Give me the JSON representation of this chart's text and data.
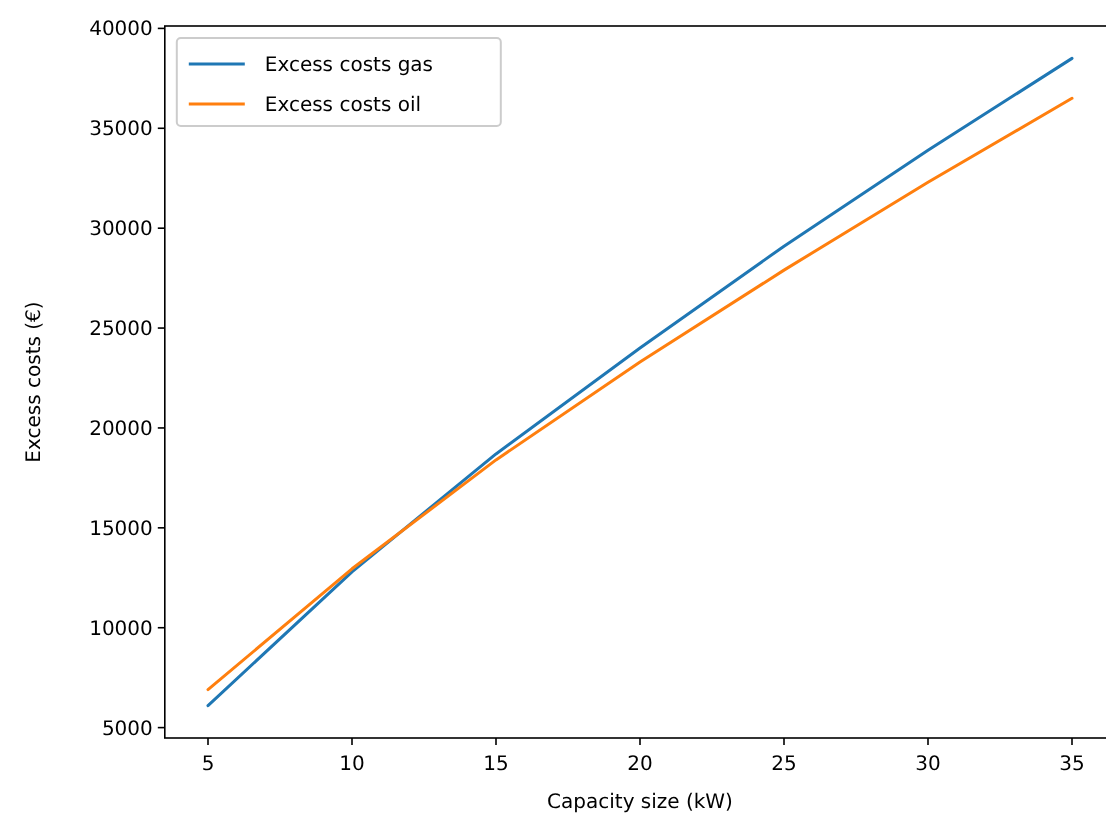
{
  "chart_data": {
    "type": "line",
    "xlabel": "Capacity size (kW)",
    "ylabel": "Excess costs (€)",
    "x": [
      5,
      10,
      15,
      20,
      25,
      30,
      35
    ],
    "series": [
      {
        "name": "Excess costs gas",
        "color": "#1f77b4",
        "values": [
          6100,
          12800,
          18700,
          24000,
          29100,
          33900,
          38500
        ]
      },
      {
        "name": "Excess costs oil",
        "color": "#ff7f0e",
        "values": [
          6900,
          12950,
          18400,
          23300,
          27900,
          32300,
          36500
        ]
      }
    ],
    "xlim": [
      3.5,
      36.5
    ],
    "ylim": [
      4480,
      40120
    ],
    "xticks": [
      5,
      10,
      15,
      20,
      25,
      30,
      35
    ],
    "yticks": [
      5000,
      10000,
      15000,
      20000,
      25000,
      30000,
      35000,
      40000
    ],
    "legend": "top left",
    "grid": false,
    "marker": "none",
    "line_style": "solid"
  }
}
